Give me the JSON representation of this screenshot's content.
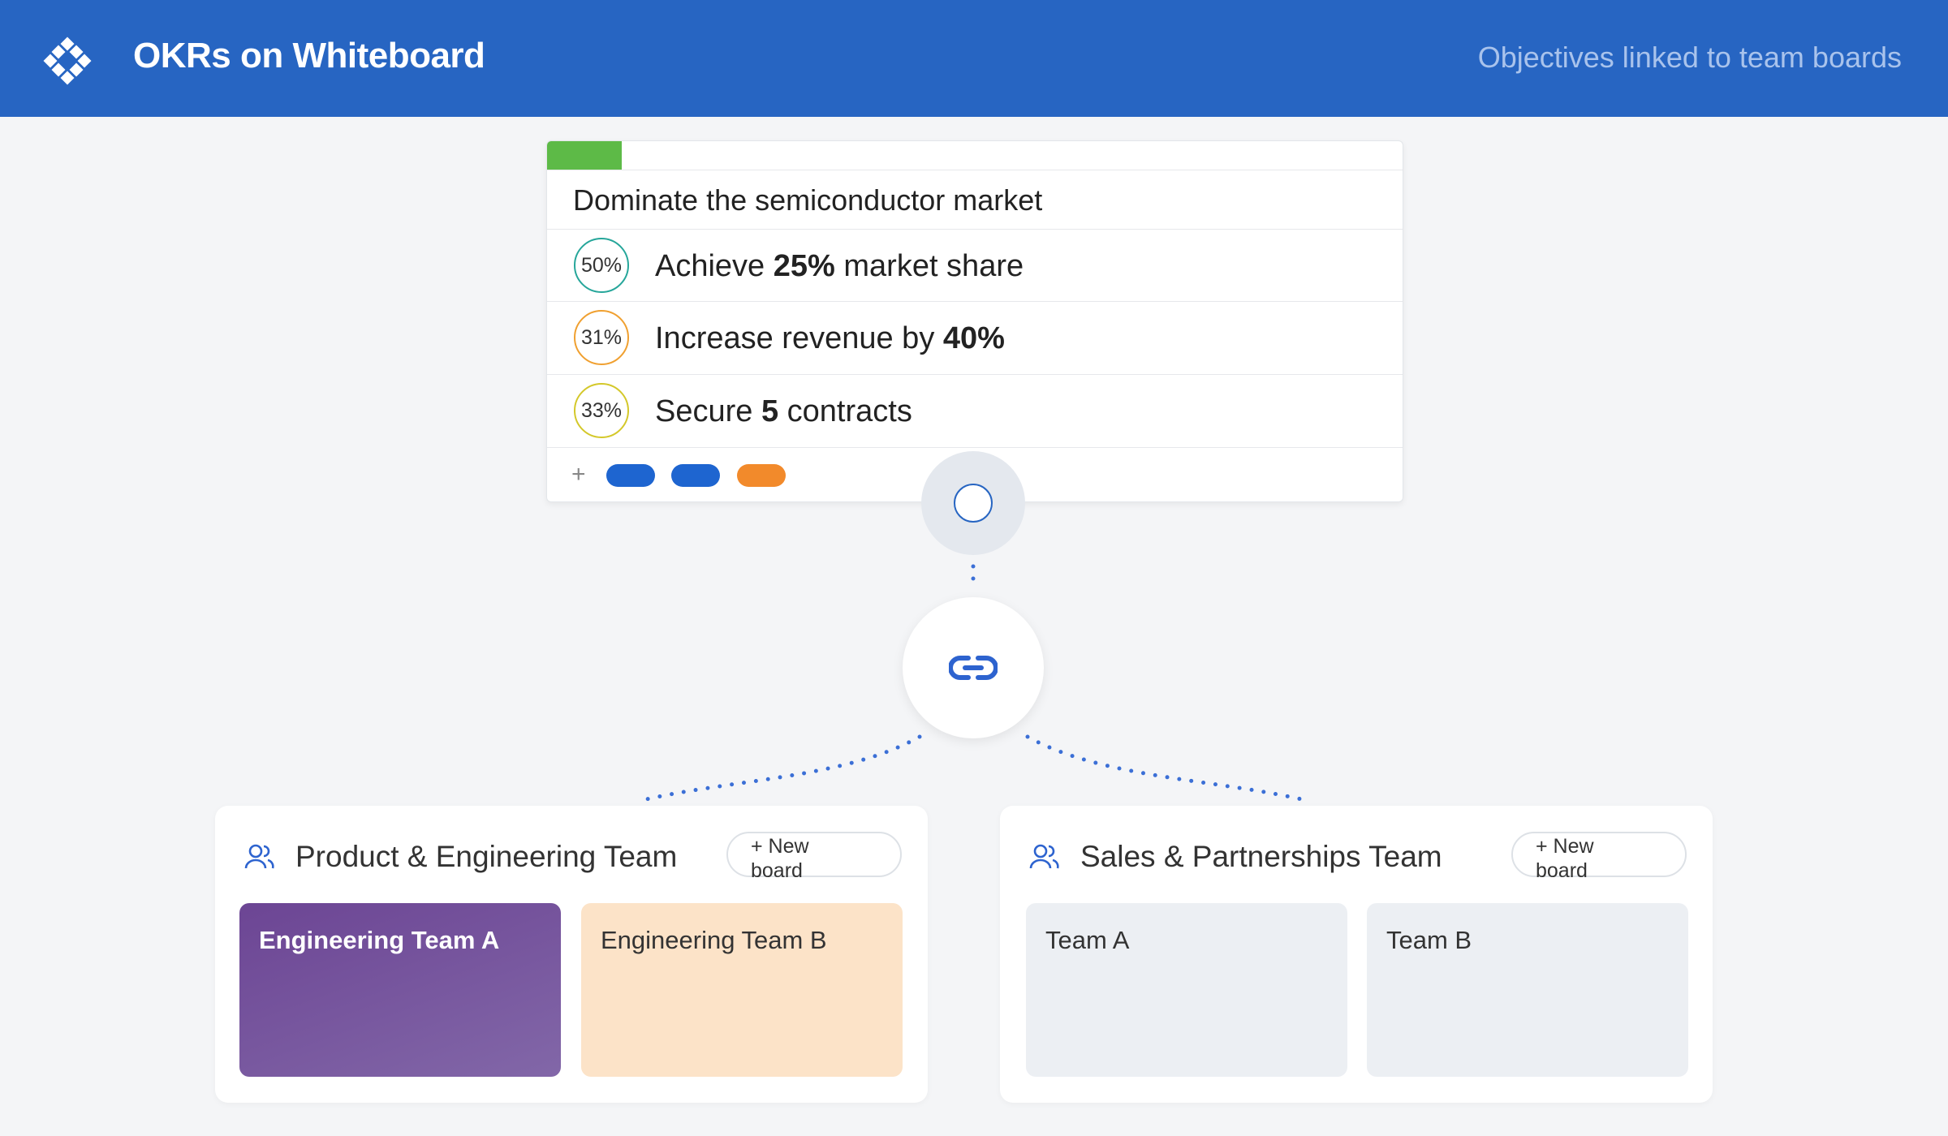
{
  "header": {
    "title": "OKRs on Whiteboard",
    "subtitle": "Objectives linked to team boards"
  },
  "objective": {
    "title": "Dominate the semiconductor market",
    "key_results": [
      {
        "progress": "50%",
        "before": "Achieve ",
        "bold": "25%",
        "after": " market share"
      },
      {
        "progress": "31%",
        "before": "Increase revenue by ",
        "bold": "40%",
        "after": ""
      },
      {
        "progress": "33%",
        "before": "Secure ",
        "bold": "5",
        "after": " contracts"
      }
    ],
    "add": "+"
  },
  "teams": [
    {
      "name": "Product & Engineering Team",
      "button": "+ New board",
      "boards": [
        "Engineering Team A",
        "Engineering Team B"
      ]
    },
    {
      "name": "Sales & Partnerships Team",
      "button": "+ New board",
      "boards": [
        "Team A",
        "Team B"
      ]
    }
  ]
}
